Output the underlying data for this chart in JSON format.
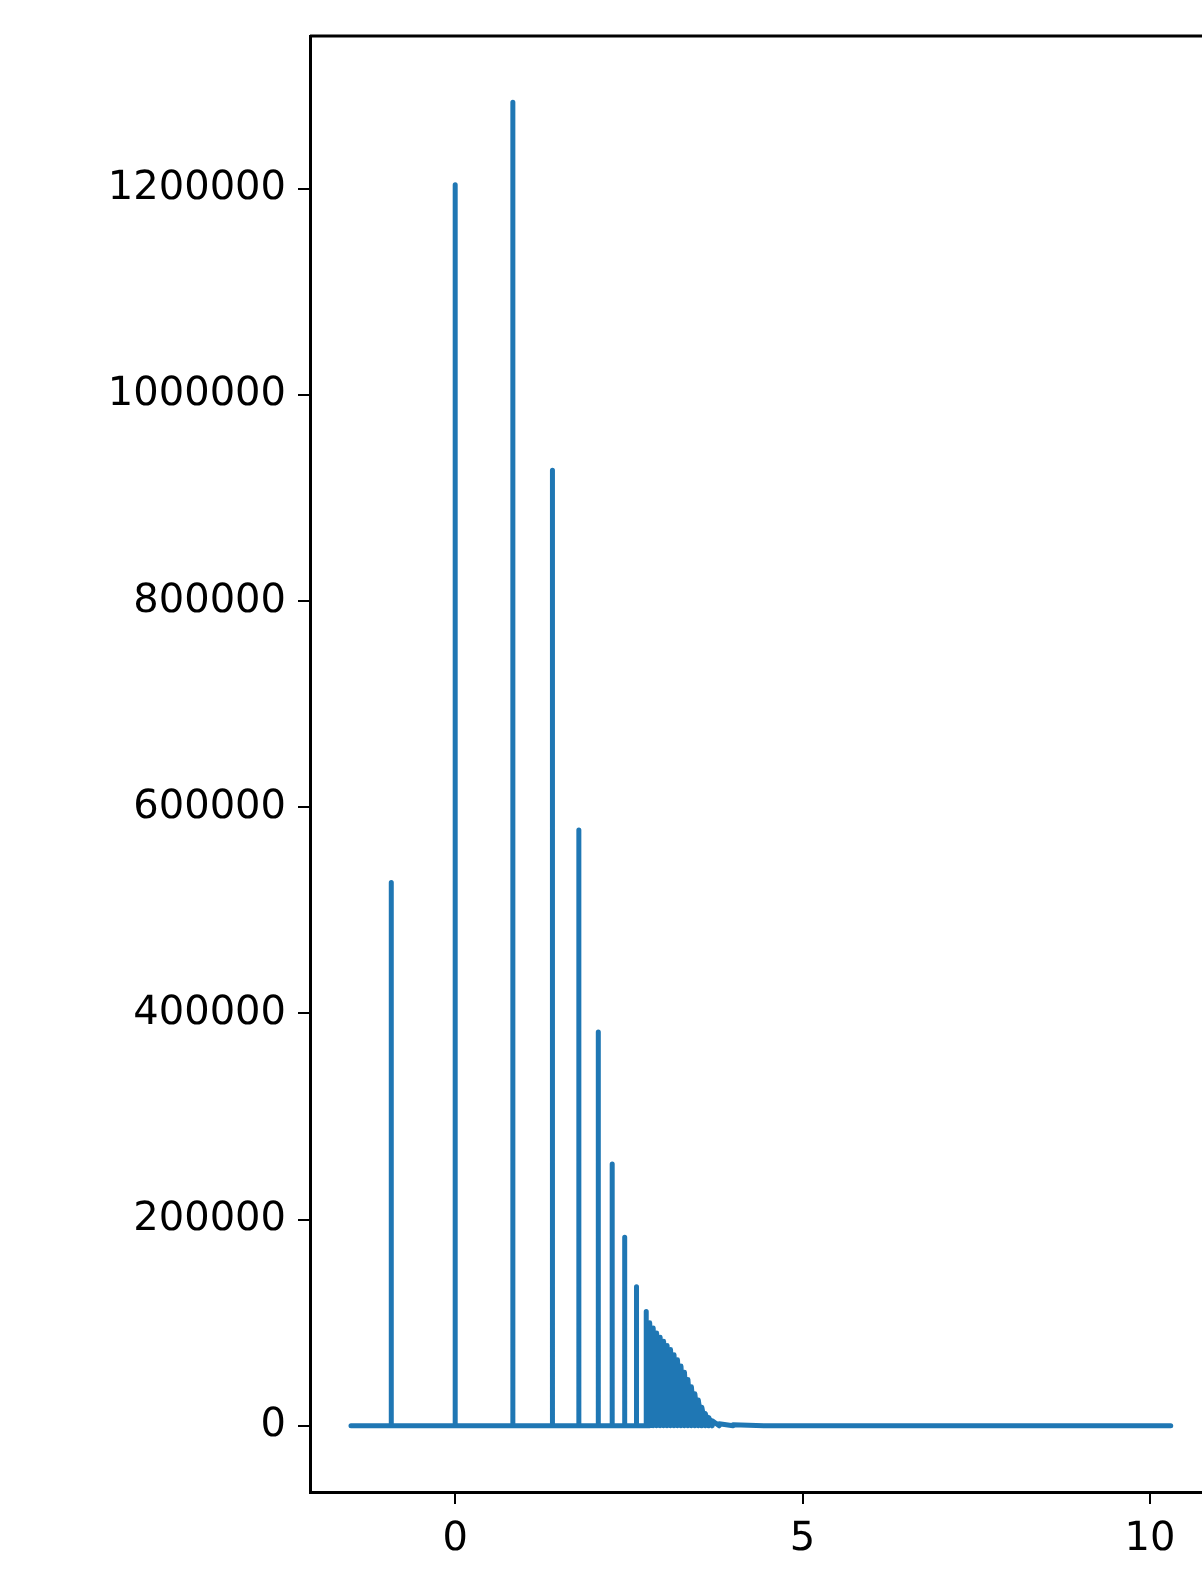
{
  "chart_data": {
    "type": "line",
    "xlim": [
      -2.09,
      10.75
    ],
    "ylim": [
      -64200,
      1348200
    ],
    "xticks": [
      0,
      5,
      10
    ],
    "yticks": [
      0,
      200000,
      400000,
      600000,
      800000,
      1000000,
      1200000
    ],
    "marker": "none",
    "line_style": "solid",
    "series": [
      {
        "color": "#1f77b4",
        "x": [
          -1.5,
          -0.92,
          -0.92,
          -0.92,
          0,
          0,
          0,
          0.83,
          0.83,
          0.83,
          1.4,
          1.4,
          1.4,
          1.78,
          1.78,
          1.78,
          2.06,
          2.06,
          2.06,
          2.26,
          2.26,
          2.26,
          2.44,
          2.44,
          2.44,
          2.61,
          2.61,
          2.61,
          2.75,
          2.75,
          2.75,
          2.8,
          2.8,
          2.85,
          2.85,
          2.9,
          2.9,
          2.95,
          2.95,
          3.0,
          3.0,
          3.05,
          3.05,
          3.1,
          3.1,
          3.15,
          3.15,
          3.2,
          3.2,
          3.25,
          3.25,
          3.3,
          3.3,
          3.35,
          3.35,
          3.4,
          3.4,
          3.45,
          3.45,
          3.5,
          3.5,
          3.55,
          3.55,
          3.6,
          3.6,
          3.65,
          3.65,
          3.7,
          3.7,
          3.8,
          3.8,
          4.0,
          4.0,
          4.5,
          10.3
        ],
        "values": [
          0,
          0,
          527000,
          0,
          0,
          1204000,
          0,
          0,
          1284000,
          0,
          0,
          927000,
          0,
          0,
          578000,
          0,
          0,
          382000,
          0,
          0,
          254000,
          0,
          0,
          183000,
          0,
          0,
          135000,
          0,
          0,
          111000,
          0,
          0,
          100000,
          0,
          95000,
          0,
          90000,
          0,
          86000,
          0,
          82000,
          0,
          78000,
          0,
          74000,
          0,
          69000,
          0,
          64000,
          0,
          58000,
          0,
          52000,
          0,
          45000,
          0,
          38000,
          0,
          31000,
          0,
          25000,
          0,
          18000,
          0,
          12000,
          0,
          8000,
          0,
          5000,
          0,
          2000,
          0,
          1000,
          0,
          0
        ]
      }
    ]
  }
}
